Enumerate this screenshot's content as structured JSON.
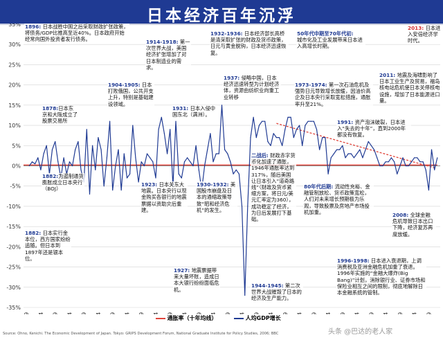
{
  "title": "日本经济百年沉浮",
  "chart_data": {
    "type": "line",
    "x_ticks": [
      "1869",
      "1874",
      "1879",
      "1884",
      "1889",
      "1894",
      "1899",
      "1904",
      "1909",
      "1914",
      "1919",
      "1924",
      "1929",
      "1934",
      "1939",
      "1944",
      "1949",
      "1954",
      "1959",
      "1964",
      "1969",
      "1974",
      "1979",
      "1984",
      "1989",
      "1994",
      "1999",
      "2004",
      "2009"
    ],
    "ylim": [
      -35,
      35
    ],
    "y_ticks": [
      "35%",
      "30%",
      "25%",
      "20%",
      "15%",
      "10%",
      "5%",
      "0%",
      "-5%",
      "-10%",
      "-15%",
      "-20%",
      "-25%",
      "-30%",
      "-35%"
    ],
    "grid": true,
    "series": [
      {
        "name": "人均GDP增长",
        "color": "#1f3a93",
        "x": [
          1870,
          1871,
          1872,
          1873,
          1874,
          1875,
          1876,
          1877,
          1878,
          1879,
          1880,
          1881,
          1882,
          1883,
          1884,
          1885,
          1886,
          1887,
          1888,
          1889,
          1890,
          1891,
          1892,
          1893,
          1894,
          1895,
          1896,
          1897,
          1898,
          1899,
          1900,
          1901,
          1902,
          1903,
          1904,
          1905,
          1906,
          1907,
          1908,
          1909,
          1910,
          1911,
          1912,
          1913,
          1914,
          1915,
          1916,
          1917,
          1918,
          1919,
          1920,
          1921,
          1922,
          1923,
          1924,
          1925,
          1926,
          1927,
          1928,
          1929,
          1930,
          1931,
          1932,
          1933,
          1934,
          1935,
          1936,
          1937,
          1938,
          1939,
          1940,
          1941,
          1942,
          1943,
          1944,
          1945,
          1946,
          1947,
          1948,
          1949,
          1950,
          1951,
          1952,
          1953,
          1954,
          1955,
          1956,
          1957,
          1958,
          1959,
          1960,
          1961,
          1962,
          1963,
          1964,
          1965,
          1966,
          1967,
          1968,
          1969,
          1970,
          1971,
          1972,
          1973,
          1974,
          1975,
          1976,
          1977,
          1978,
          1979,
          1980,
          1981,
          1982,
          1983,
          1984,
          1985,
          1986,
          1987,
          1988,
          1989,
          1990,
          1991,
          1992,
          1993,
          1994,
          1995,
          1996,
          1997,
          1998,
          1999,
          2000,
          2001,
          2002,
          2003,
          2004,
          2005,
          2006,
          2007,
          2008,
          2009,
          2010,
          2011,
          2012
        ],
        "y": [
          0,
          1,
          0.5,
          2,
          -1,
          3,
          5,
          -2,
          4,
          6,
          1,
          -3,
          2,
          -2,
          1,
          0,
          4,
          6,
          -1,
          -4,
          9,
          -7,
          5,
          -1,
          7,
          4,
          -5,
          2,
          11,
          -6,
          0,
          4,
          -6,
          3,
          -3,
          -2,
          10,
          2,
          -4,
          1,
          0,
          3,
          2,
          1,
          -3,
          9,
          12,
          8,
          3,
          9,
          -5,
          11,
          -2,
          -3,
          1,
          2,
          1,
          0,
          5,
          -1,
          -6,
          0,
          4,
          8,
          1,
          3,
          3,
          15,
          4,
          3,
          1,
          -2,
          -1,
          -2,
          -10,
          -32,
          -10,
          7,
          12,
          7,
          10,
          11,
          11,
          6,
          5,
          8,
          7,
          7,
          5,
          9,
          12,
          12,
          7,
          9,
          10,
          5,
          10,
          11,
          11,
          11,
          9,
          4,
          7,
          7,
          -2,
          2,
          3,
          4,
          4,
          5,
          2,
          3,
          3,
          2,
          3,
          4,
          2,
          4,
          6,
          5,
          4,
          2,
          0,
          0,
          1,
          1,
          2,
          1,
          -2,
          0,
          2,
          0,
          0,
          1,
          2,
          2,
          1,
          1,
          -1,
          -6,
          4,
          -1,
          2
        ],
        "base": 1868
      },
      {
        "name": "通胀率（十年均线）",
        "color": "#e0433a",
        "x": [
          1868,
          2012
        ],
        "y": [
          0.2,
          0.2
        ]
      }
    ],
    "trend": {
      "x": [
        1956,
        2011
      ],
      "y": [
        10.5,
        -0.5
      ],
      "color": "#e0433a"
    },
    "legend": [
      "通胀率（十年均线）",
      "人均GDP增长"
    ]
  },
  "annotations": [
    {
      "id": "1896",
      "year": "1896:",
      "text": "日本战胜中国之后采取财政扩张政策，将债务/GDP比推高至近40%。日本政府开始经常向国外投资者发行债务。"
    },
    {
      "id": "1878",
      "year": "1878:",
      "text": "日本东京和大阪成立了股票交易所"
    },
    {
      "id": "1882a",
      "year": "1882:",
      "text": "为遏制通货膨胀成立日本央行（BOJ）"
    },
    {
      "id": "1882b",
      "year": "1882:",
      "text": "日本实行金本位，西方国家纷纷追随。但日本到1897年还是银本位。"
    },
    {
      "id": "1904",
      "year": "1904-1905:",
      "text": "日本打败俄国，公共开支上升，特别是基础建设领域。"
    },
    {
      "id": "1914",
      "year": "1914-1918:",
      "text": "第一次世界大战，美国经济扩张增加了对日本制造业的需求。"
    },
    {
      "id": "1932",
      "year": "1932-1936:",
      "text": "日本经济部长高桥是清采取扩张的财政及货币政策，日元与黄金脱钩，日本经济迅速恢复。"
    },
    {
      "id": "50s",
      "year": "50年代中期至70年代初:",
      "text": "城市化及工业发展带来日本进入高增长时期。"
    },
    {
      "id": "2013",
      "year": "2013:",
      "text": "日本进入安倍经济学时代。"
    },
    {
      "id": "1931",
      "year": "1931:",
      "text": "日本入侵中国东北（满洲）。"
    },
    {
      "id": "1937",
      "year": "1937:",
      "text": "侵略中国，日本经济迅速转型为计划经济体，资源由纺织业向重工业转移"
    },
    {
      "id": "1973",
      "year": "1973-1974:",
      "text": "第一次石油危机及强势日元导致增长放缓，因油价高企及日本央行采取宽松措施，通胀率升至21%。"
    },
    {
      "id": "2011",
      "year": "2011:",
      "text": "地震及海啸影响了日本工业生产及贸易，福岛核电站危机使日本关停核电设施，增加了日本能源进口量。"
    },
    {
      "id": "1991",
      "year": "1991:",
      "text": "资产泡沫破裂，日本进入“失去的十年”，直到2000年都没有恢复。"
    },
    {
      "id": "1923",
      "year": "1923:",
      "text": "日本关东大地震。日本央行以现金购买各银行的地震票据以资助灾后重建。"
    },
    {
      "id": "1930",
      "year": "1930-1932:",
      "text": "美国股市崩盘及日本的通缩政策导致“昭和经济危机”的发生。"
    },
    {
      "id": "postwar",
      "year": "二战后:",
      "text": "财政赤字货币化加速了通胀，1946年通胀率达到317%，随后美国让日本引入“道奇路线”（财政及货币紧缩方案，将日元/美元汇率定为360），成功稳定了经济，为日后发展打下基础。"
    },
    {
      "id": "80s",
      "year": "80年代后期:",
      "text": "流动性充裕、金融管制放松、货币政策宽松，人们对未来增长预期极为乐观，导致股票及房地产市场投机加重。"
    },
    {
      "id": "2008",
      "year": "2008:",
      "text": "全球金融危机导致日本出口下降，经济复苏再度放缓。"
    },
    {
      "id": "1927",
      "year": "1927:",
      "text": "地震票据带来大量坏账，造成日本大银行纷纷面临危机。"
    },
    {
      "id": "1944",
      "year": "1944-1945:",
      "text": "第二次世界大战摧毁了日本的经济及生产能力。"
    },
    {
      "id": "1996",
      "year": "1996-1998:",
      "text": "日本进入衰退期，上调消费税及亚洲金融危机加重了衰退。1996年实施的“金融大爆炸(Big Bang)”计划，消除银行业、证券市场和保险业相互之间的限制，彻底地解除日本金融系统的管制。"
    }
  ],
  "source": "Source: Ohno, Kenichi. The Economic Development of Japan. Tokyo: GRIPS Development Forum, National Graduate Institute for Policy Studies, 2006; BBC",
  "badge": "头条 @巴达的老人家"
}
